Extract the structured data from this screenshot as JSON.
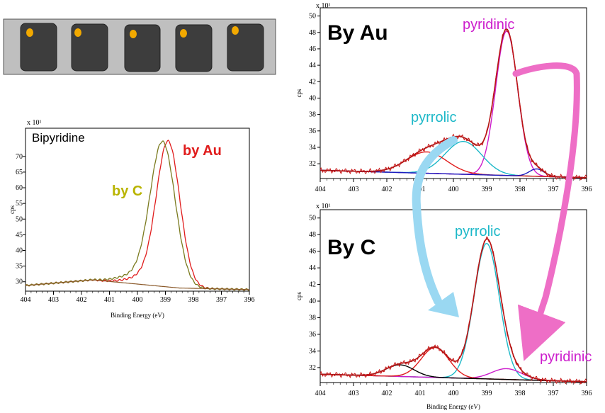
{
  "colors": {
    "dark_red": "#a01818",
    "red": "#e01c1c",
    "olive": "#7a7a1e",
    "olive_label": "#b9b400",
    "magenta": "#cc1ccc",
    "cyan": "#1cb8c8",
    "blue": "#1c1cc0",
    "black": "#000000",
    "brown": "#8b5a2b",
    "pink_arrow": "#ee6ec6",
    "blue_arrow": "#9ad8f2",
    "device_frame": "#bfbfbf",
    "device_pad": "#3d3d3d",
    "device_dot": "#f2a900"
  },
  "chart_data": [
    {
      "id": "bipyridine",
      "type": "line",
      "title": "Bipyridine",
      "xlabel": "Binding Energy (eV)",
      "ylabel": "cps",
      "y_multiplier": "x 10¹",
      "xlim": [
        404,
        396
      ],
      "ylim": [
        27,
        79
      ],
      "xticks": [
        404,
        403,
        402,
        401,
        400,
        399,
        398,
        397,
        396
      ],
      "yticks": [
        30,
        35,
        40,
        45,
        50,
        55,
        60,
        65,
        70
      ],
      "series": [
        {
          "name": "by Au",
          "label": "by Au",
          "color": "#e01c1c",
          "shape": "peak",
          "center": 398.9,
          "sigma": 0.42,
          "amplitude": 46,
          "shoulder": 0.9
        },
        {
          "name": "by C",
          "label": "by C",
          "color": "#7a7a1e",
          "shape": "peak",
          "center": 399.1,
          "sigma": 0.45,
          "amplitude": 46,
          "shoulder": 1.1
        },
        {
          "name": "baseline",
          "color": "#8b5a2b",
          "shape": "baseline",
          "points": [
            [
              404,
              28.8
            ],
            [
              401.6,
              30.6
            ],
            [
              398.5,
              28.0
            ],
            [
              396,
              27.5
            ]
          ]
        }
      ]
    },
    {
      "id": "by_au",
      "type": "line",
      "title": "By Au",
      "xlabel": "",
      "ylabel": "cps",
      "y_multiplier": "x 10¹",
      "xlim": [
        404,
        396
      ],
      "ylim": [
        30.2,
        51
      ],
      "xticks": [
        404,
        403,
        402,
        401,
        400,
        399,
        398,
        397,
        396
      ],
      "yticks": [
        32,
        34,
        36,
        38,
        40,
        42,
        44,
        46,
        48,
        50
      ],
      "annotations": [
        {
          "text": "pyridinic",
          "color": "#cc1ccc"
        },
        {
          "text": "pyrrolic",
          "color": "#1cb8c8"
        }
      ],
      "series": [
        {
          "name": "pyridinic",
          "color": "#cc1ccc",
          "center": 398.4,
          "sigma": 0.33,
          "amplitude": 17.6
        },
        {
          "name": "pyrrolic",
          "color": "#1cb8c8",
          "center": 399.7,
          "sigma": 0.55,
          "amplitude": 4.0
        },
        {
          "name": "satellite-red",
          "color": "#e01c1c",
          "center": 400.8,
          "sigma": 0.6,
          "amplitude": 2.6
        },
        {
          "name": "satellite-blue",
          "color": "#1c1cc0",
          "center": 397.5,
          "sigma": 0.22,
          "amplitude": 0.9
        },
        {
          "name": "envelope",
          "color": "#a01818",
          "shape": "envelope"
        },
        {
          "name": "baseline",
          "color": "#8b5a2b",
          "shape": "baseline"
        }
      ]
    },
    {
      "id": "by_c",
      "type": "line",
      "title": "By C",
      "xlabel": "Binding Energy (eV)",
      "ylabel": "cps",
      "y_multiplier": "x 10¹",
      "xlim": [
        404,
        396
      ],
      "ylim": [
        30.2,
        51
      ],
      "xticks": [
        404,
        403,
        402,
        401,
        400,
        399,
        398,
        397,
        396
      ],
      "yticks": [
        32,
        34,
        36,
        38,
        40,
        42,
        44,
        46,
        48,
        50
      ],
      "annotations": [
        {
          "text": "pyrrolic",
          "color": "#1cb8c8"
        },
        {
          "text": "pyridinic",
          "color": "#cc1ccc"
        }
      ],
      "series": [
        {
          "name": "pyrrolic",
          "color": "#1cb8c8",
          "center": 399.0,
          "sigma": 0.38,
          "amplitude": 16.3
        },
        {
          "name": "pyridinic",
          "color": "#cc1ccc",
          "center": 398.4,
          "sigma": 0.45,
          "amplitude": 1.3
        },
        {
          "name": "satellite-red",
          "color": "#e01c1c",
          "center": 400.55,
          "sigma": 0.42,
          "amplitude": 3.6
        },
        {
          "name": "satellite-black",
          "color": "#000000",
          "center": 401.6,
          "sigma": 0.42,
          "amplitude": 1.4
        },
        {
          "name": "envelope",
          "color": "#a01818",
          "shape": "envelope"
        },
        {
          "name": "baseline",
          "color": "#8b5a2b",
          "shape": "baseline"
        }
      ]
    }
  ]
}
